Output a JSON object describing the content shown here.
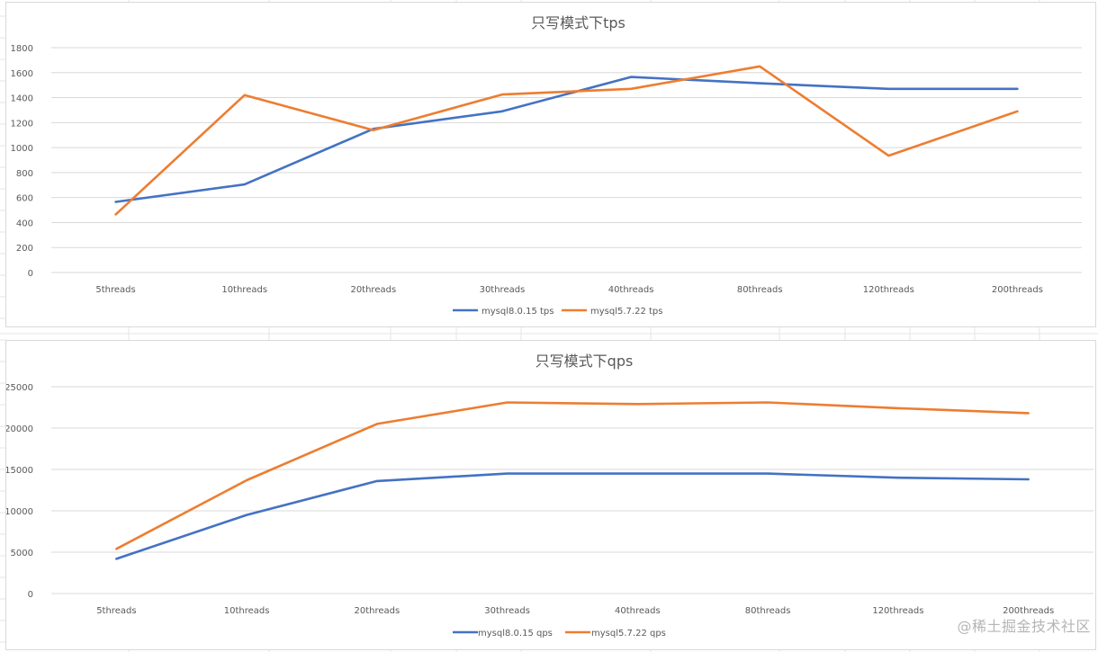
{
  "watermark": "@稀土掘金技术社区",
  "colors": {
    "series1": "#4472c4",
    "series2": "#ed7d31",
    "grid": "#d9d9d9",
    "text": "#595959"
  },
  "chart_data": [
    {
      "type": "line",
      "title": "只写模式下tps",
      "categories": [
        "5threads",
        "10threads",
        "20threads",
        "30threads",
        "40threads",
        "80threads",
        "120threads",
        "200threads"
      ],
      "ylim": [
        0,
        1800
      ],
      "yticks": [
        0,
        200,
        400,
        600,
        800,
        1000,
        1200,
        1400,
        1600,
        1800
      ],
      "grid": true,
      "legend": "bottom",
      "series": [
        {
          "name": "mysql8.0.15 tps",
          "values": [
            565,
            705,
            1150,
            1290,
            1565,
            1515,
            1470,
            1470
          ]
        },
        {
          "name": "mysql5.7.22 tps",
          "values": [
            465,
            1420,
            1140,
            1425,
            1470,
            1650,
            935,
            1290
          ]
        }
      ]
    },
    {
      "type": "line",
      "title": "只写模式下qps",
      "categories": [
        "5threads",
        "10threads",
        "20threads",
        "30threads",
        "40threads",
        "80threads",
        "120threads",
        "200threads"
      ],
      "ylim": [
        0,
        25000
      ],
      "yticks": [
        0,
        5000,
        10000,
        15000,
        20000,
        25000
      ],
      "grid": true,
      "legend": "bottom",
      "series": [
        {
          "name": "mysql8.0.15 qps",
          "values": [
            4200,
            9500,
            13600,
            14500,
            14500,
            14500,
            14000,
            13800
          ]
        },
        {
          "name": "mysql5.7.22 qps",
          "values": [
            5400,
            13700,
            20500,
            23100,
            22900,
            23100,
            22400,
            21800
          ]
        }
      ]
    }
  ]
}
